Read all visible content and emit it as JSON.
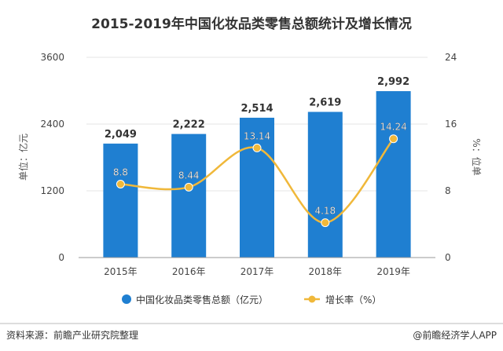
{
  "chart_data": {
    "type": "bar",
    "title": "2015-2019年中国化妆品类零售总额统计及增长情况",
    "categories": [
      "2015年",
      "2016年",
      "2017年",
      "2018年",
      "2019年"
    ],
    "ylabel": "单位：亿元",
    "ylabel_right": "%：位单",
    "ylim": [
      0,
      3600
    ],
    "yticks": [
      0,
      1200,
      2400,
      3600
    ],
    "y2lim": [
      0,
      24
    ],
    "y2ticks": [
      0,
      8,
      16,
      24
    ],
    "series": [
      {
        "name": "中国化妆品类零售总额（亿元）",
        "type": "bar",
        "axis": "left",
        "values": [
          2049,
          2222,
          2514,
          2619,
          2992
        ],
        "labels": [
          "2,049",
          "2,222",
          "2,514",
          "2,619",
          "2,992"
        ],
        "color": "#1f7fd1"
      },
      {
        "name": "增长率（%）",
        "type": "line",
        "axis": "right",
        "values": [
          8.8,
          8.44,
          13.14,
          4.18,
          14.24
        ],
        "labels": [
          "8.8",
          "8.44",
          "13.14",
          "4.18",
          "14.24"
        ],
        "color": "#f0b83a"
      }
    ],
    "legend_position": "bottom",
    "grid": false
  },
  "footer": {
    "source": "资料来源：前瞻产业研究院整理",
    "brand": "@前瞻经济学人APP"
  }
}
